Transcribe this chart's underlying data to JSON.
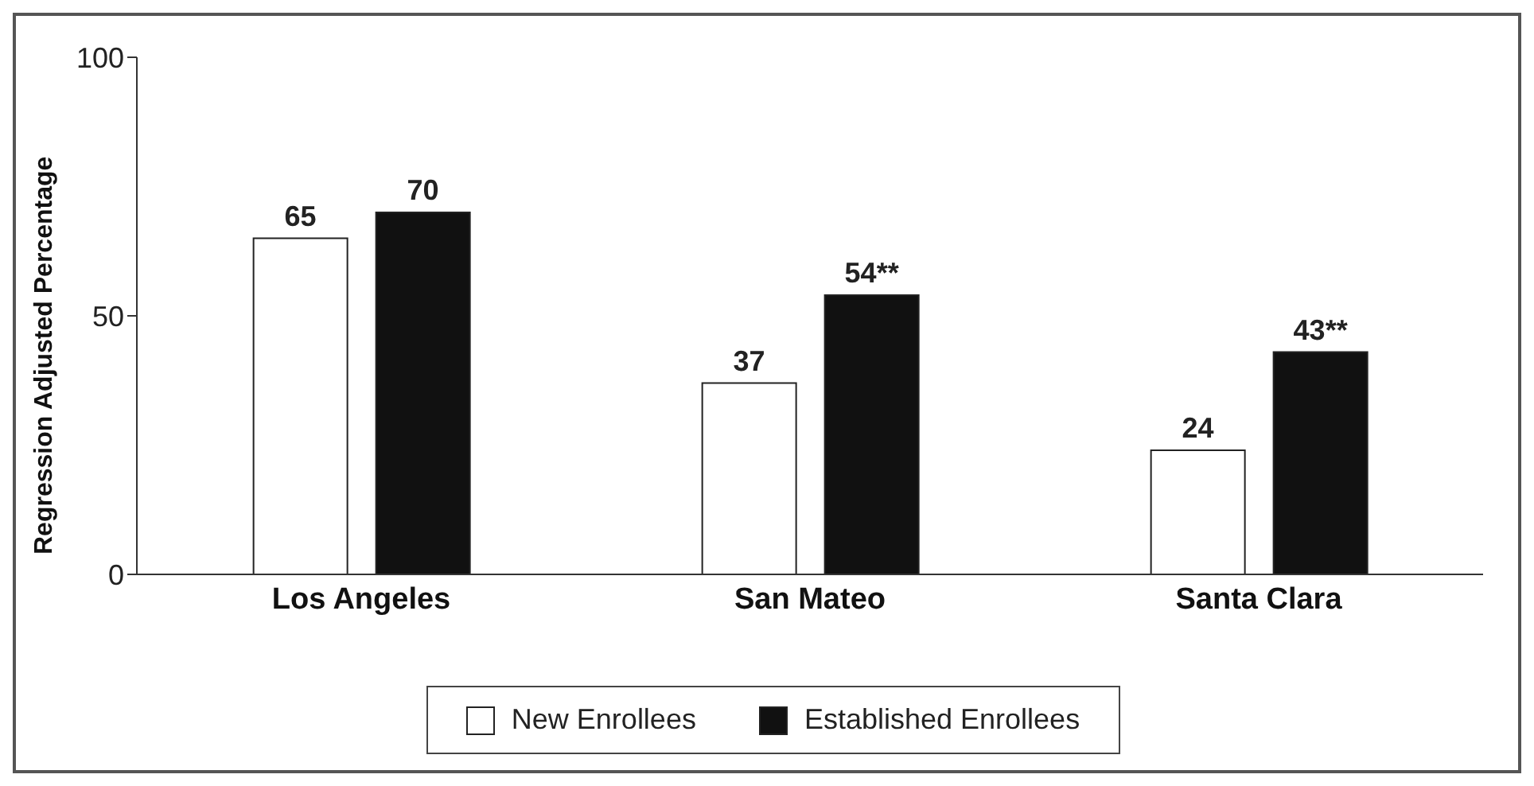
{
  "chart_data": {
    "type": "bar",
    "ylabel": "Regression Adjusted Percentage",
    "categories": [
      "Los Angeles",
      "San Mateo",
      "Santa Clara"
    ],
    "series": [
      {
        "name": "New Enrollees",
        "color": "#ffffff",
        "values": [
          65,
          37,
          24
        ],
        "value_labels": [
          "65",
          "37",
          "24"
        ]
      },
      {
        "name": "Established Enrollees",
        "color": "#111111",
        "values": [
          70,
          54,
          43
        ],
        "value_labels": [
          "70",
          "54**",
          "43**"
        ]
      }
    ],
    "ylim": [
      0,
      100
    ],
    "yticks": [
      0,
      50,
      100
    ],
    "grid": false,
    "legend": "bottom"
  }
}
